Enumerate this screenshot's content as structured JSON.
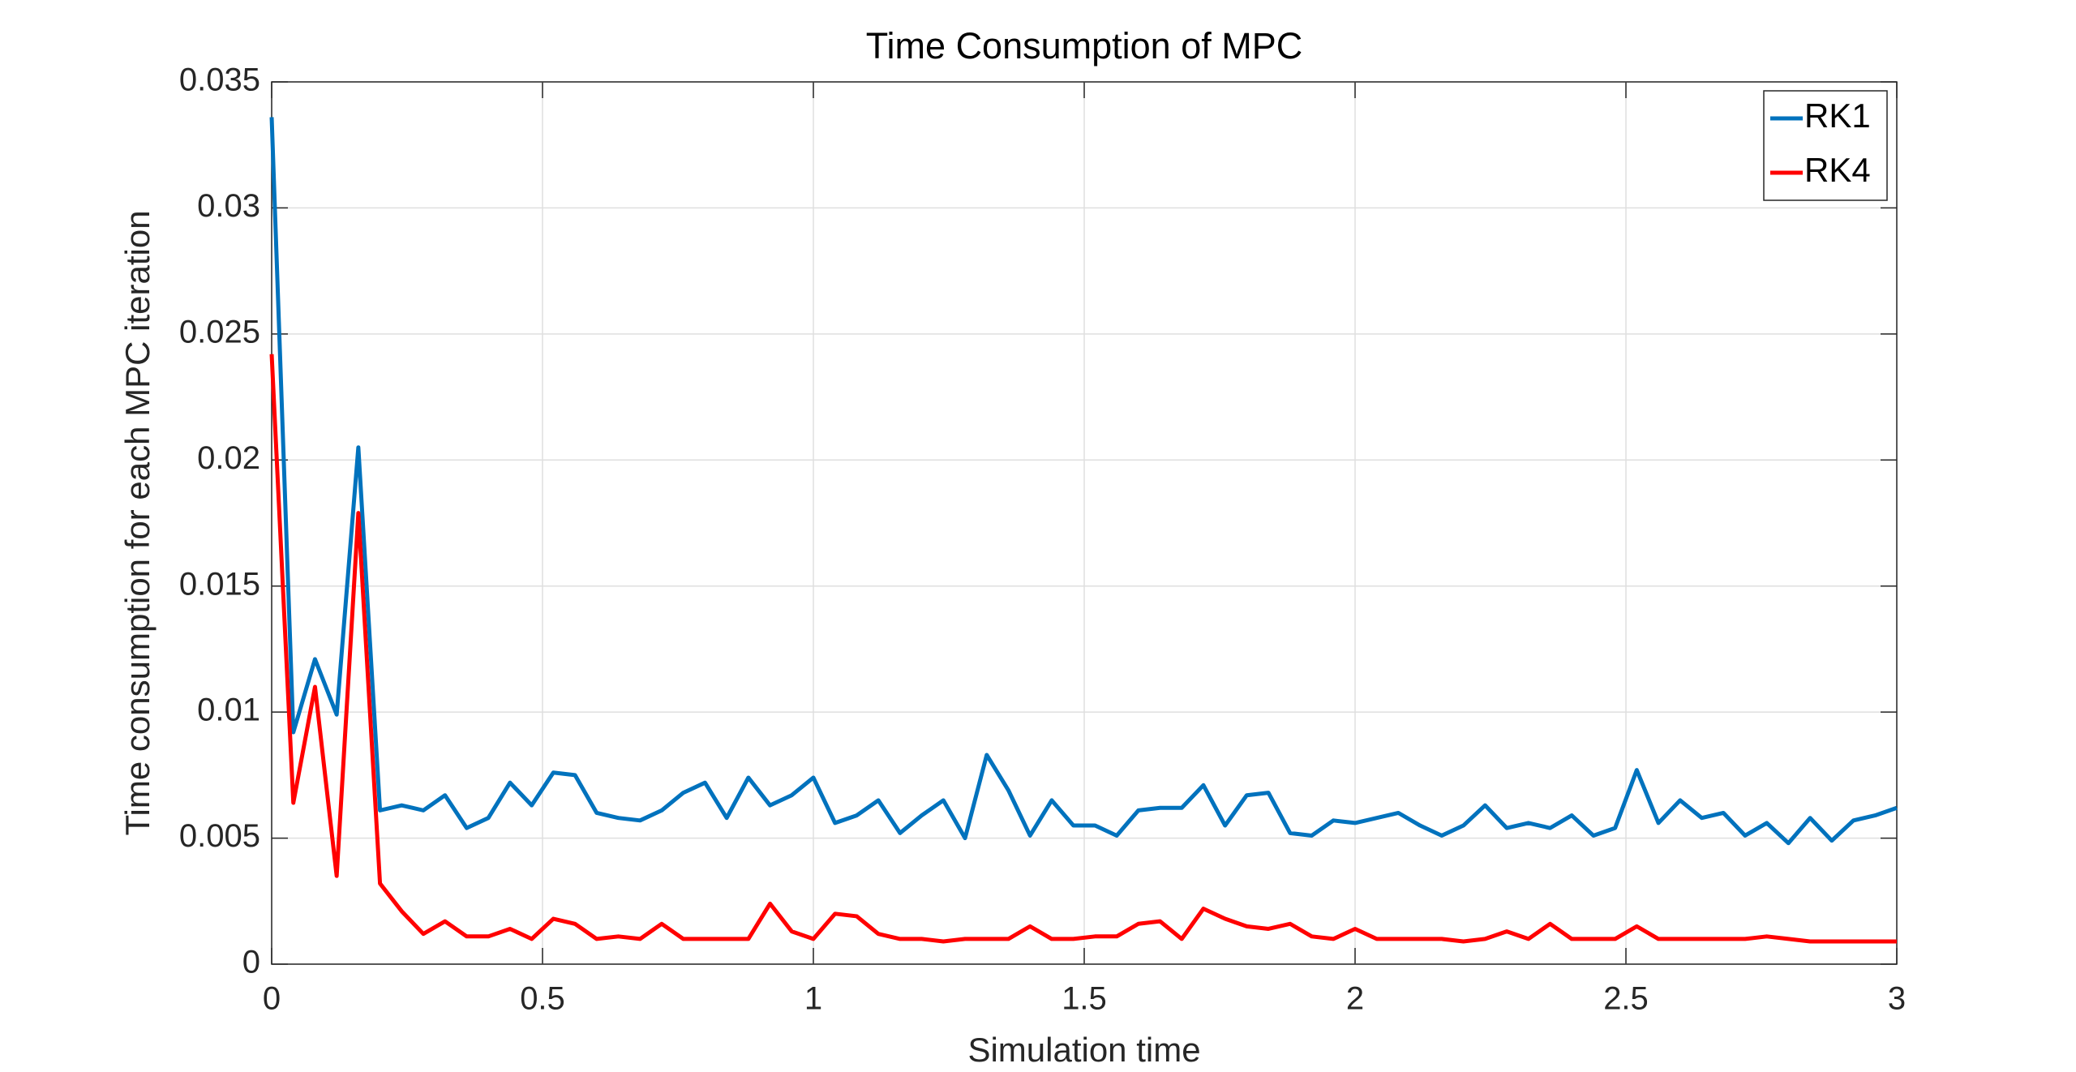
{
  "chart_data": {
    "type": "line",
    "title": "Time Consumption of MPC",
    "x_label": "Simulation time",
    "y_label": "Time consumption for each MPC iteration",
    "x": [
      0,
      0.04,
      0.08,
      0.12,
      0.16,
      0.2,
      0.24,
      0.28,
      0.32,
      0.36,
      0.4,
      0.44,
      0.48,
      0.52,
      0.56,
      0.6,
      0.64,
      0.68,
      0.72,
      0.76,
      0.8,
      0.84,
      0.88,
      0.92,
      0.96,
      1,
      1.04,
      1.08,
      1.12,
      1.16,
      1.2,
      1.24,
      1.28,
      1.32,
      1.36,
      1.4,
      1.44,
      1.48,
      1.52,
      1.56,
      1.6,
      1.64,
      1.68,
      1.72,
      1.76,
      1.8,
      1.84,
      1.88,
      1.92,
      1.96,
      2,
      2.04,
      2.08,
      2.12,
      2.16,
      2.2,
      2.24,
      2.28,
      2.32,
      2.36,
      2.4,
      2.44,
      2.48,
      2.52,
      2.56,
      2.6,
      2.64,
      2.68,
      2.72,
      2.76,
      2.8,
      2.84,
      2.88,
      2.92,
      2.96,
      3
    ],
    "series": [
      {
        "name": "RK1",
        "color": "#0072bd",
        "values": [
          0.0336,
          0.0092,
          0.0121,
          0.0099,
          0.0205,
          0.0061,
          0.0063,
          0.0061,
          0.0067,
          0.0054,
          0.0058,
          0.0072,
          0.0063,
          0.0076,
          0.0075,
          0.006,
          0.0058,
          0.0057,
          0.0061,
          0.0068,
          0.0072,
          0.0058,
          0.0074,
          0.0063,
          0.0067,
          0.0074,
          0.0056,
          0.0059,
          0.0065,
          0.0052,
          0.0059,
          0.0065,
          0.005,
          0.0083,
          0.0069,
          0.0051,
          0.0065,
          0.0055,
          0.0055,
          0.0051,
          0.0061,
          0.0062,
          0.0062,
          0.0071,
          0.0055,
          0.0067,
          0.0068,
          0.0052,
          0.0051,
          0.0057,
          0.0056,
          0.0058,
          0.006,
          0.0055,
          0.0051,
          0.0055,
          0.0063,
          0.0054,
          0.0056,
          0.0054,
          0.0059,
          0.0051,
          0.0054,
          0.0077,
          0.0056,
          0.0065,
          0.0058,
          0.006,
          0.0051,
          0.0056,
          0.0048,
          0.0058,
          0.0049,
          0.0057,
          0.0059,
          0.0062
        ]
      },
      {
        "name": "RK4",
        "color": "#ff0000",
        "values": [
          0.0242,
          0.0064,
          0.011,
          0.0035,
          0.0179,
          0.0032,
          0.0021,
          0.0012,
          0.0017,
          0.0011,
          0.0011,
          0.0014,
          0.001,
          0.0018,
          0.0016,
          0.001,
          0.0011,
          0.001,
          0.0016,
          0.001,
          0.001,
          0.001,
          0.001,
          0.0024,
          0.0013,
          0.001,
          0.002,
          0.0019,
          0.0012,
          0.001,
          0.001,
          0.0009,
          0.001,
          0.001,
          0.001,
          0.0015,
          0.001,
          0.001,
          0.0011,
          0.0011,
          0.0016,
          0.0017,
          0.001,
          0.0022,
          0.0018,
          0.0015,
          0.0014,
          0.0016,
          0.0011,
          0.001,
          0.0014,
          0.001,
          0.001,
          0.001,
          0.001,
          0.0009,
          0.001,
          0.0013,
          0.001,
          0.0016,
          0.001,
          0.001,
          0.001,
          0.0015,
          0.001,
          0.001,
          0.001,
          0.001,
          0.001,
          0.0011,
          0.001,
          0.0009,
          0.0009,
          0.0009,
          0.0009,
          0.0009
        ]
      }
    ],
    "xlim": [
      0,
      3
    ],
    "xticks": [
      0,
      0.5,
      1,
      1.5,
      2,
      2.5,
      3
    ],
    "ylim": [
      0,
      0.035
    ],
    "yticks": [
      0,
      0.005,
      0.01,
      0.015,
      0.02,
      0.025,
      0.03,
      0.035
    ],
    "grid": true,
    "legend": "top-right"
  }
}
